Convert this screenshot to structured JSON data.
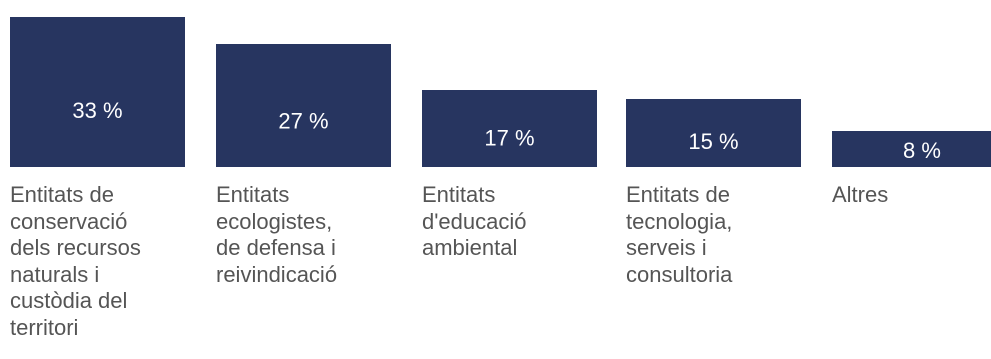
{
  "chart_data": {
    "type": "bar",
    "categories": [
      "Entitats de\nconservació\ndels recursos\nnaturals i\ncustòdia del\nterritori",
      "Entitats\necologistes,\nde defensa i\nreivindicació",
      "Entitats\nd'educació\nambiental",
      "Entitats de\ntecnologia,\nserveis i\nconsultoria",
      "Altres"
    ],
    "values": [
      33,
      27,
      17,
      15,
      8
    ],
    "data_labels": [
      "33 %",
      "27 %",
      "17 %",
      "15 %",
      "8 %"
    ],
    "unit": "%",
    "ylim": [
      0,
      33
    ],
    "grid": false,
    "legend": "none",
    "colors": {
      "bar": "#273560",
      "bar_label": "#ffffff",
      "category_label": "#555555"
    }
  }
}
